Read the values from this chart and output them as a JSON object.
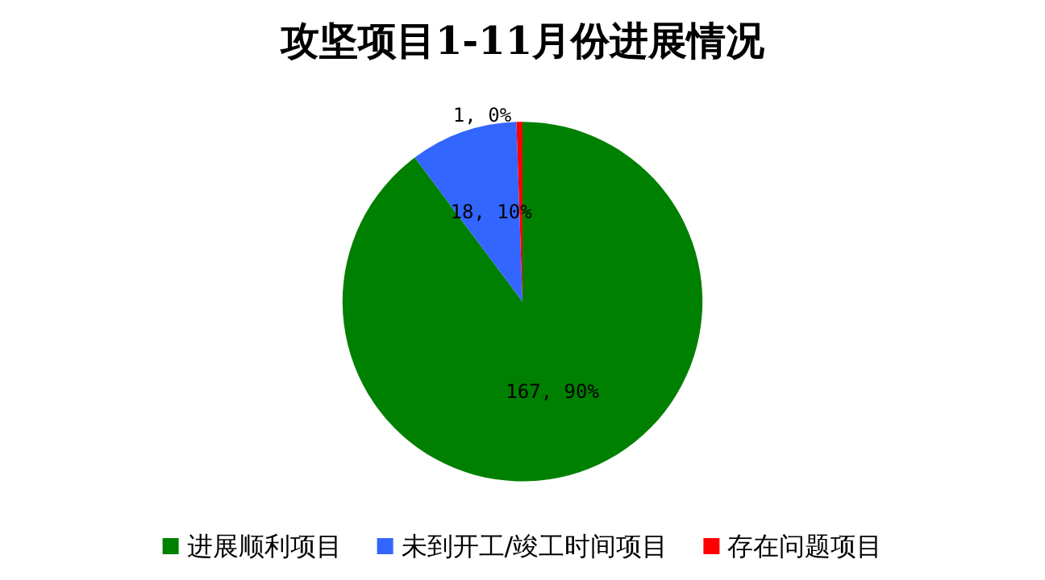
{
  "chart_data": {
    "type": "pie",
    "title": "攻坚项目1-11月份进展情况",
    "categories": [
      "进展顺利项目",
      "未到开工/竣工时间项目",
      "存在问题项目"
    ],
    "values": [
      167,
      18,
      1
    ],
    "colors": [
      "#008000",
      "#3366ff",
      "#ff0000"
    ],
    "value_labels": [
      "167, 90%",
      "18, 10%",
      "1, 0%"
    ],
    "legend": "bottom"
  }
}
